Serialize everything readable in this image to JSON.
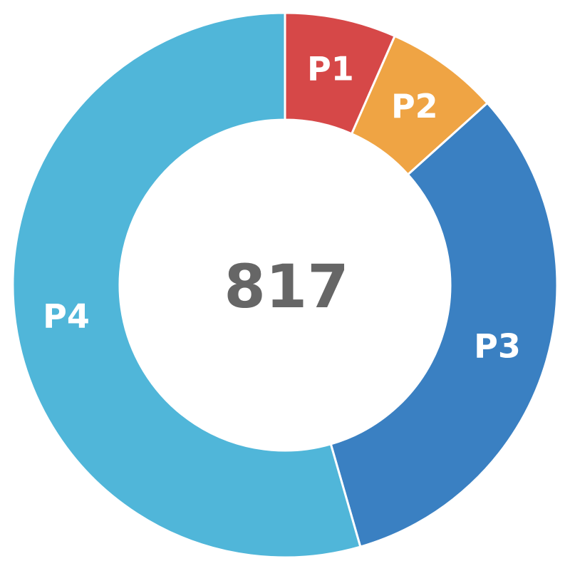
{
  "chart_data": {
    "type": "pie",
    "variant": "donut",
    "title": "",
    "center_label": "817",
    "start_angle_deg": 0,
    "direction": "clockwise",
    "categories": [
      "P1",
      "P2",
      "P3",
      "P4"
    ],
    "values": [
      54,
      55,
      263,
      445
    ],
    "total": 817,
    "colors": [
      "#d64848",
      "#efa444",
      "#3a80c2",
      "#50b6d9"
    ],
    "legend": "none",
    "data_labels": "category-name-on-slice"
  }
}
